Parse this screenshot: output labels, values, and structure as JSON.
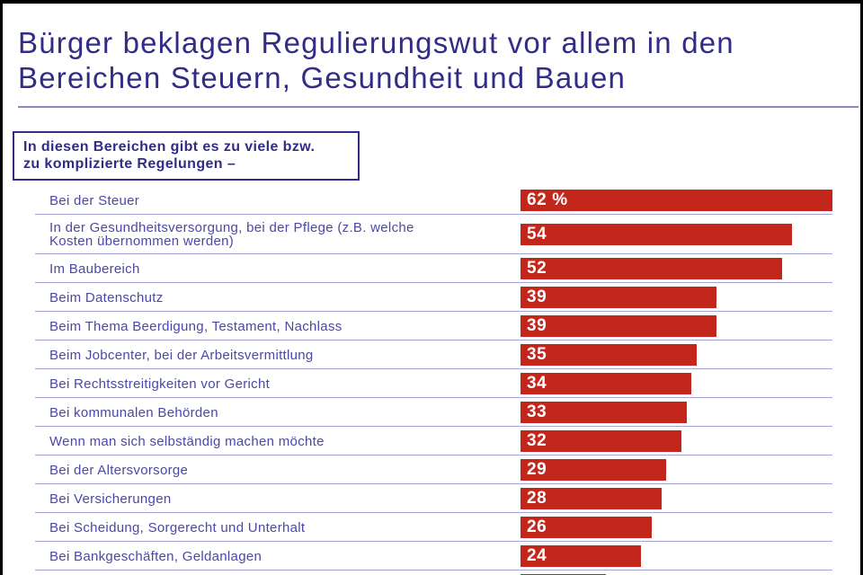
{
  "header": {
    "title": "Bürger beklagen Regulierungswut vor allem in den\nBereichen Steuern, Gesundheit und Bauen"
  },
  "intro_box": {
    "text": "In diesen Bereichen gibt es zu viele bzw.\nzu komplizierte Regelungen –"
  },
  "colors": {
    "bar_red": "#c3261a",
    "heading_indigo": "#322c86",
    "label_indigo": "#4c48a6",
    "separator_lavender": "#a3a2d4",
    "frame_black": "#000000",
    "bar_value_text": "#ffffff"
  },
  "chart_data": {
    "type": "bar",
    "orientation": "horizontal",
    "title": "Bürger beklagen Regulierungswut vor allem in den Bereichen Steuern, Gesundheit und Bauen",
    "subtitle": "In diesen Bereichen gibt es zu viele bzw. zu komplizierte Regelungen –",
    "xlim": [
      0,
      62
    ],
    "grid": false,
    "legend": "none",
    "value_labels_position": "inside-left",
    "categories": [
      "Bei der Steuer",
      "In der Gesundheitsversorgung, bei der Pflege (z.B. welche\nKosten übernommen werden)",
      "Im Baubereich",
      "Beim Datenschutz",
      "Beim Thema Beerdigung, Testament, Nachlass",
      "Beim Jobcenter, bei der Arbeitsvermittlung",
      "Bei Rechtsstreitigkeiten vor Gericht",
      "Bei kommunalen Behörden",
      "Wenn man sich selbständig machen möchte",
      "Bei der Altersvorsorge",
      "Bei Versicherungen",
      "Bei Scheidung, Sorgerecht und Unterhalt",
      "Bei Bankgeschäften, Geldanlagen",
      ""
    ],
    "values": [
      62,
      54,
      52,
      39,
      39,
      35,
      34,
      33,
      32,
      29,
      28,
      26,
      24,
      17
    ],
    "value_labels": [
      "62 %",
      "54",
      "52",
      "39",
      "39",
      "35",
      "34",
      "33",
      "32",
      "29",
      "28",
      "26",
      "24",
      ""
    ],
    "last_row_cut_off": true
  }
}
